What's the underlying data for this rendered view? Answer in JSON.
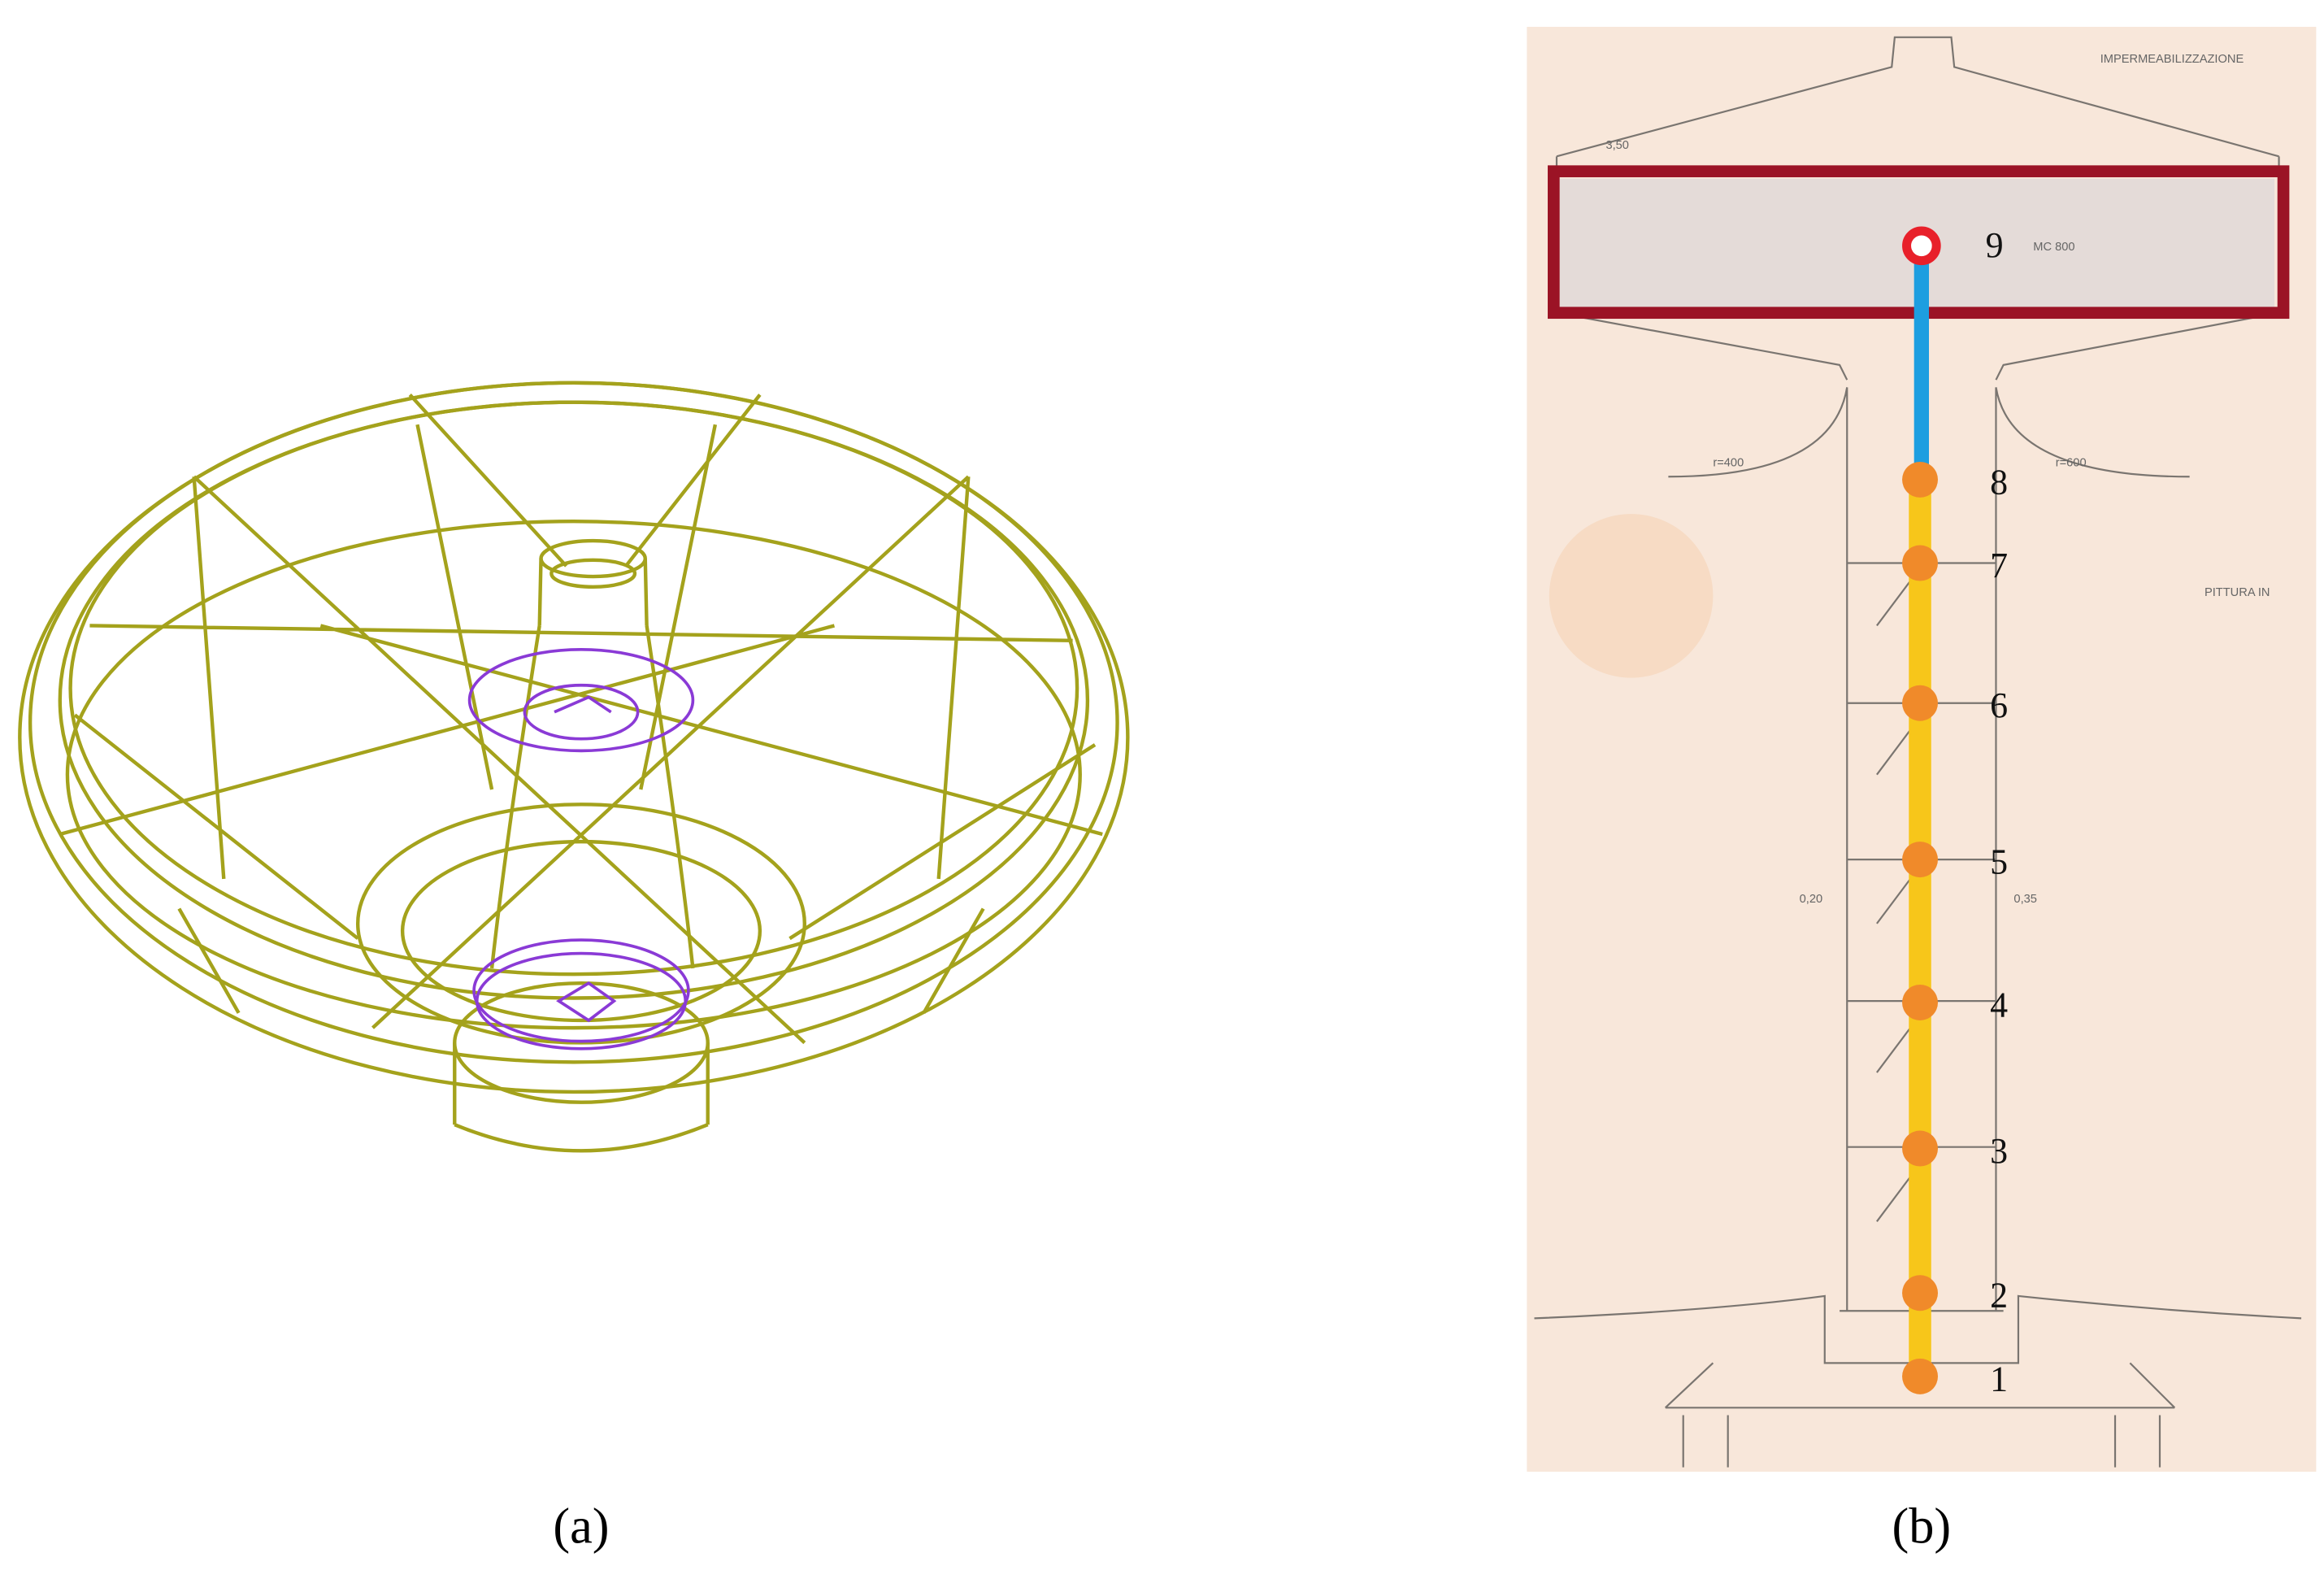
{
  "panels": [
    {
      "label": "(a)"
    },
    {
      "label": "(b)",
      "drawing_texts": [
        "IMPERMEABILIZZAZIONE",
        "MC 800",
        "PITTURA IN",
        "r=400",
        "r=600",
        "0,20",
        "0,35",
        "3,50"
      ],
      "nodes": [
        {
          "label": "1"
        },
        {
          "label": "2"
        },
        {
          "label": "3"
        },
        {
          "label": "4"
        },
        {
          "label": "5"
        },
        {
          "label": "6"
        },
        {
          "label": "7"
        },
        {
          "label": "8"
        },
        {
          "label": "9"
        }
      ]
    }
  ]
}
